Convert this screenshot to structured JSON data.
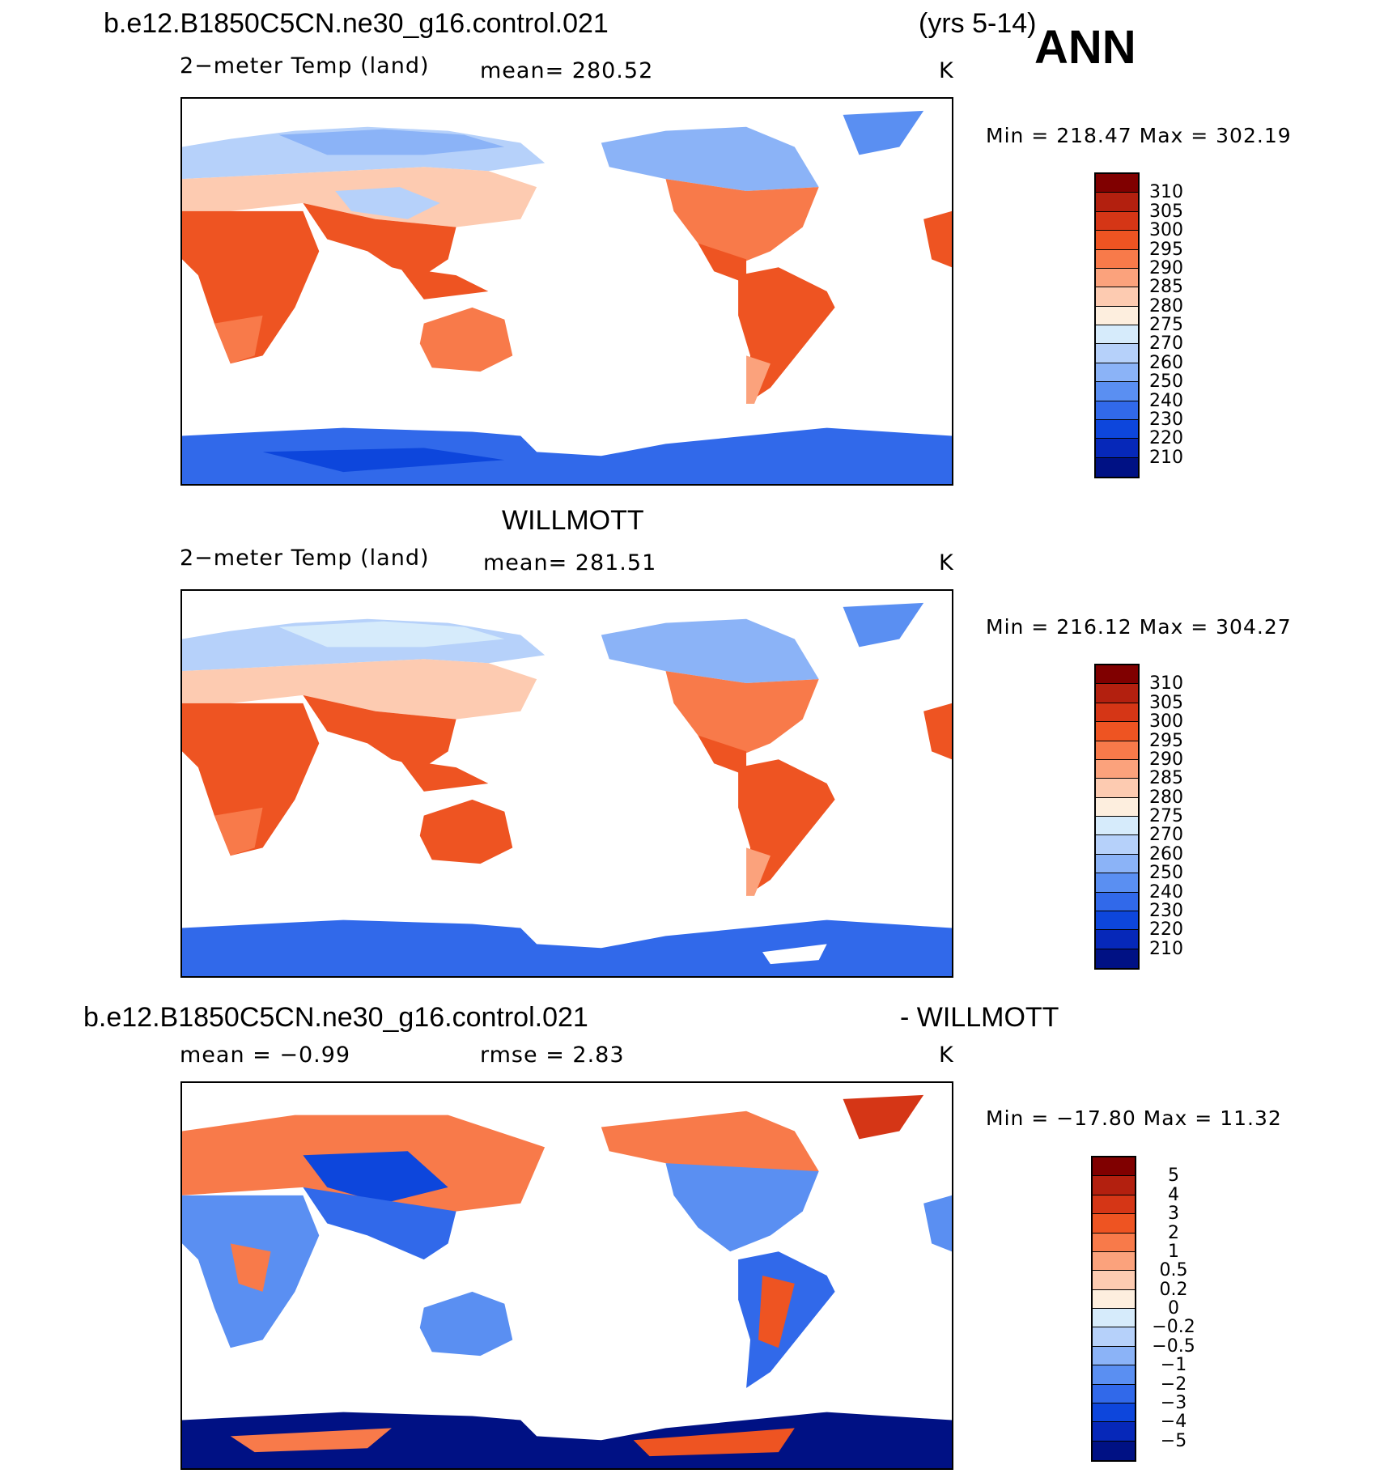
{
  "header": {
    "case_title": "b.e12.B1850C5CN.ne30_g16.control.021",
    "years": "(yrs 5-14)",
    "season": "ANN"
  },
  "panels": [
    {
      "heading": "",
      "left_label": "2−meter Temp (land)",
      "mid_label": "mean=  280.52",
      "units": "K",
      "minmax": "Min  =  218.47  Max  =  302.19",
      "colorbar": {
        "labels": [
          "310",
          "305",
          "300",
          "295",
          "290",
          "285",
          "280",
          "275",
          "270",
          "260",
          "250",
          "240",
          "230",
          "220",
          "210"
        ],
        "colors": [
          "#800000",
          "#b3200f",
          "#d53616",
          "#ee5422",
          "#f87a4a",
          "#fba27c",
          "#fdcbb1",
          "#fdeede",
          "#d6ebfb",
          "#b6d1fa",
          "#8bb3f7",
          "#5a8ff2",
          "#3169ea",
          "#0d46dc",
          "#0628b9",
          "#001184"
        ]
      }
    },
    {
      "heading": "WILLMOTT",
      "left_label": "2−meter Temp (land)",
      "mid_label": "mean=  281.51",
      "units": "K",
      "minmax": "Min  =  216.12  Max  =  304.27",
      "colorbar": {
        "labels": [
          "310",
          "305",
          "300",
          "295",
          "290",
          "285",
          "280",
          "275",
          "270",
          "260",
          "250",
          "240",
          "230",
          "220",
          "210"
        ],
        "colors": [
          "#800000",
          "#b3200f",
          "#d53616",
          "#ee5422",
          "#f87a4a",
          "#fba27c",
          "#fdcbb1",
          "#fdeede",
          "#d6ebfb",
          "#b6d1fa",
          "#8bb3f7",
          "#5a8ff2",
          "#3169ea",
          "#0d46dc",
          "#0628b9",
          "#001184"
        ]
      }
    },
    {
      "heading_left": "b.e12.B1850C5CN.ne30_g16.control.021",
      "heading_right": "- WILLMOTT",
      "left_label": "mean =     −0.99",
      "mid_label": "rmse =      2.83",
      "units": "K",
      "minmax": "Min  =  −17.80  Max  =     11.32",
      "colorbar": {
        "labels": [
          "5",
          "4",
          "3",
          "2",
          "1",
          "0.5",
          "0.2",
          "0",
          "−0.2",
          "−0.5",
          "−1",
          "−2",
          "−3",
          "−4",
          "−5"
        ],
        "colors": [
          "#800000",
          "#b3200f",
          "#d53616",
          "#ee5422",
          "#f87a4a",
          "#fba27c",
          "#fdcbb1",
          "#fdeede",
          "#d6ebfb",
          "#b6d1fa",
          "#8bb3f7",
          "#5a8ff2",
          "#3169ea",
          "#0d46dc",
          "#0628b9",
          "#001184"
        ]
      }
    }
  ]
}
